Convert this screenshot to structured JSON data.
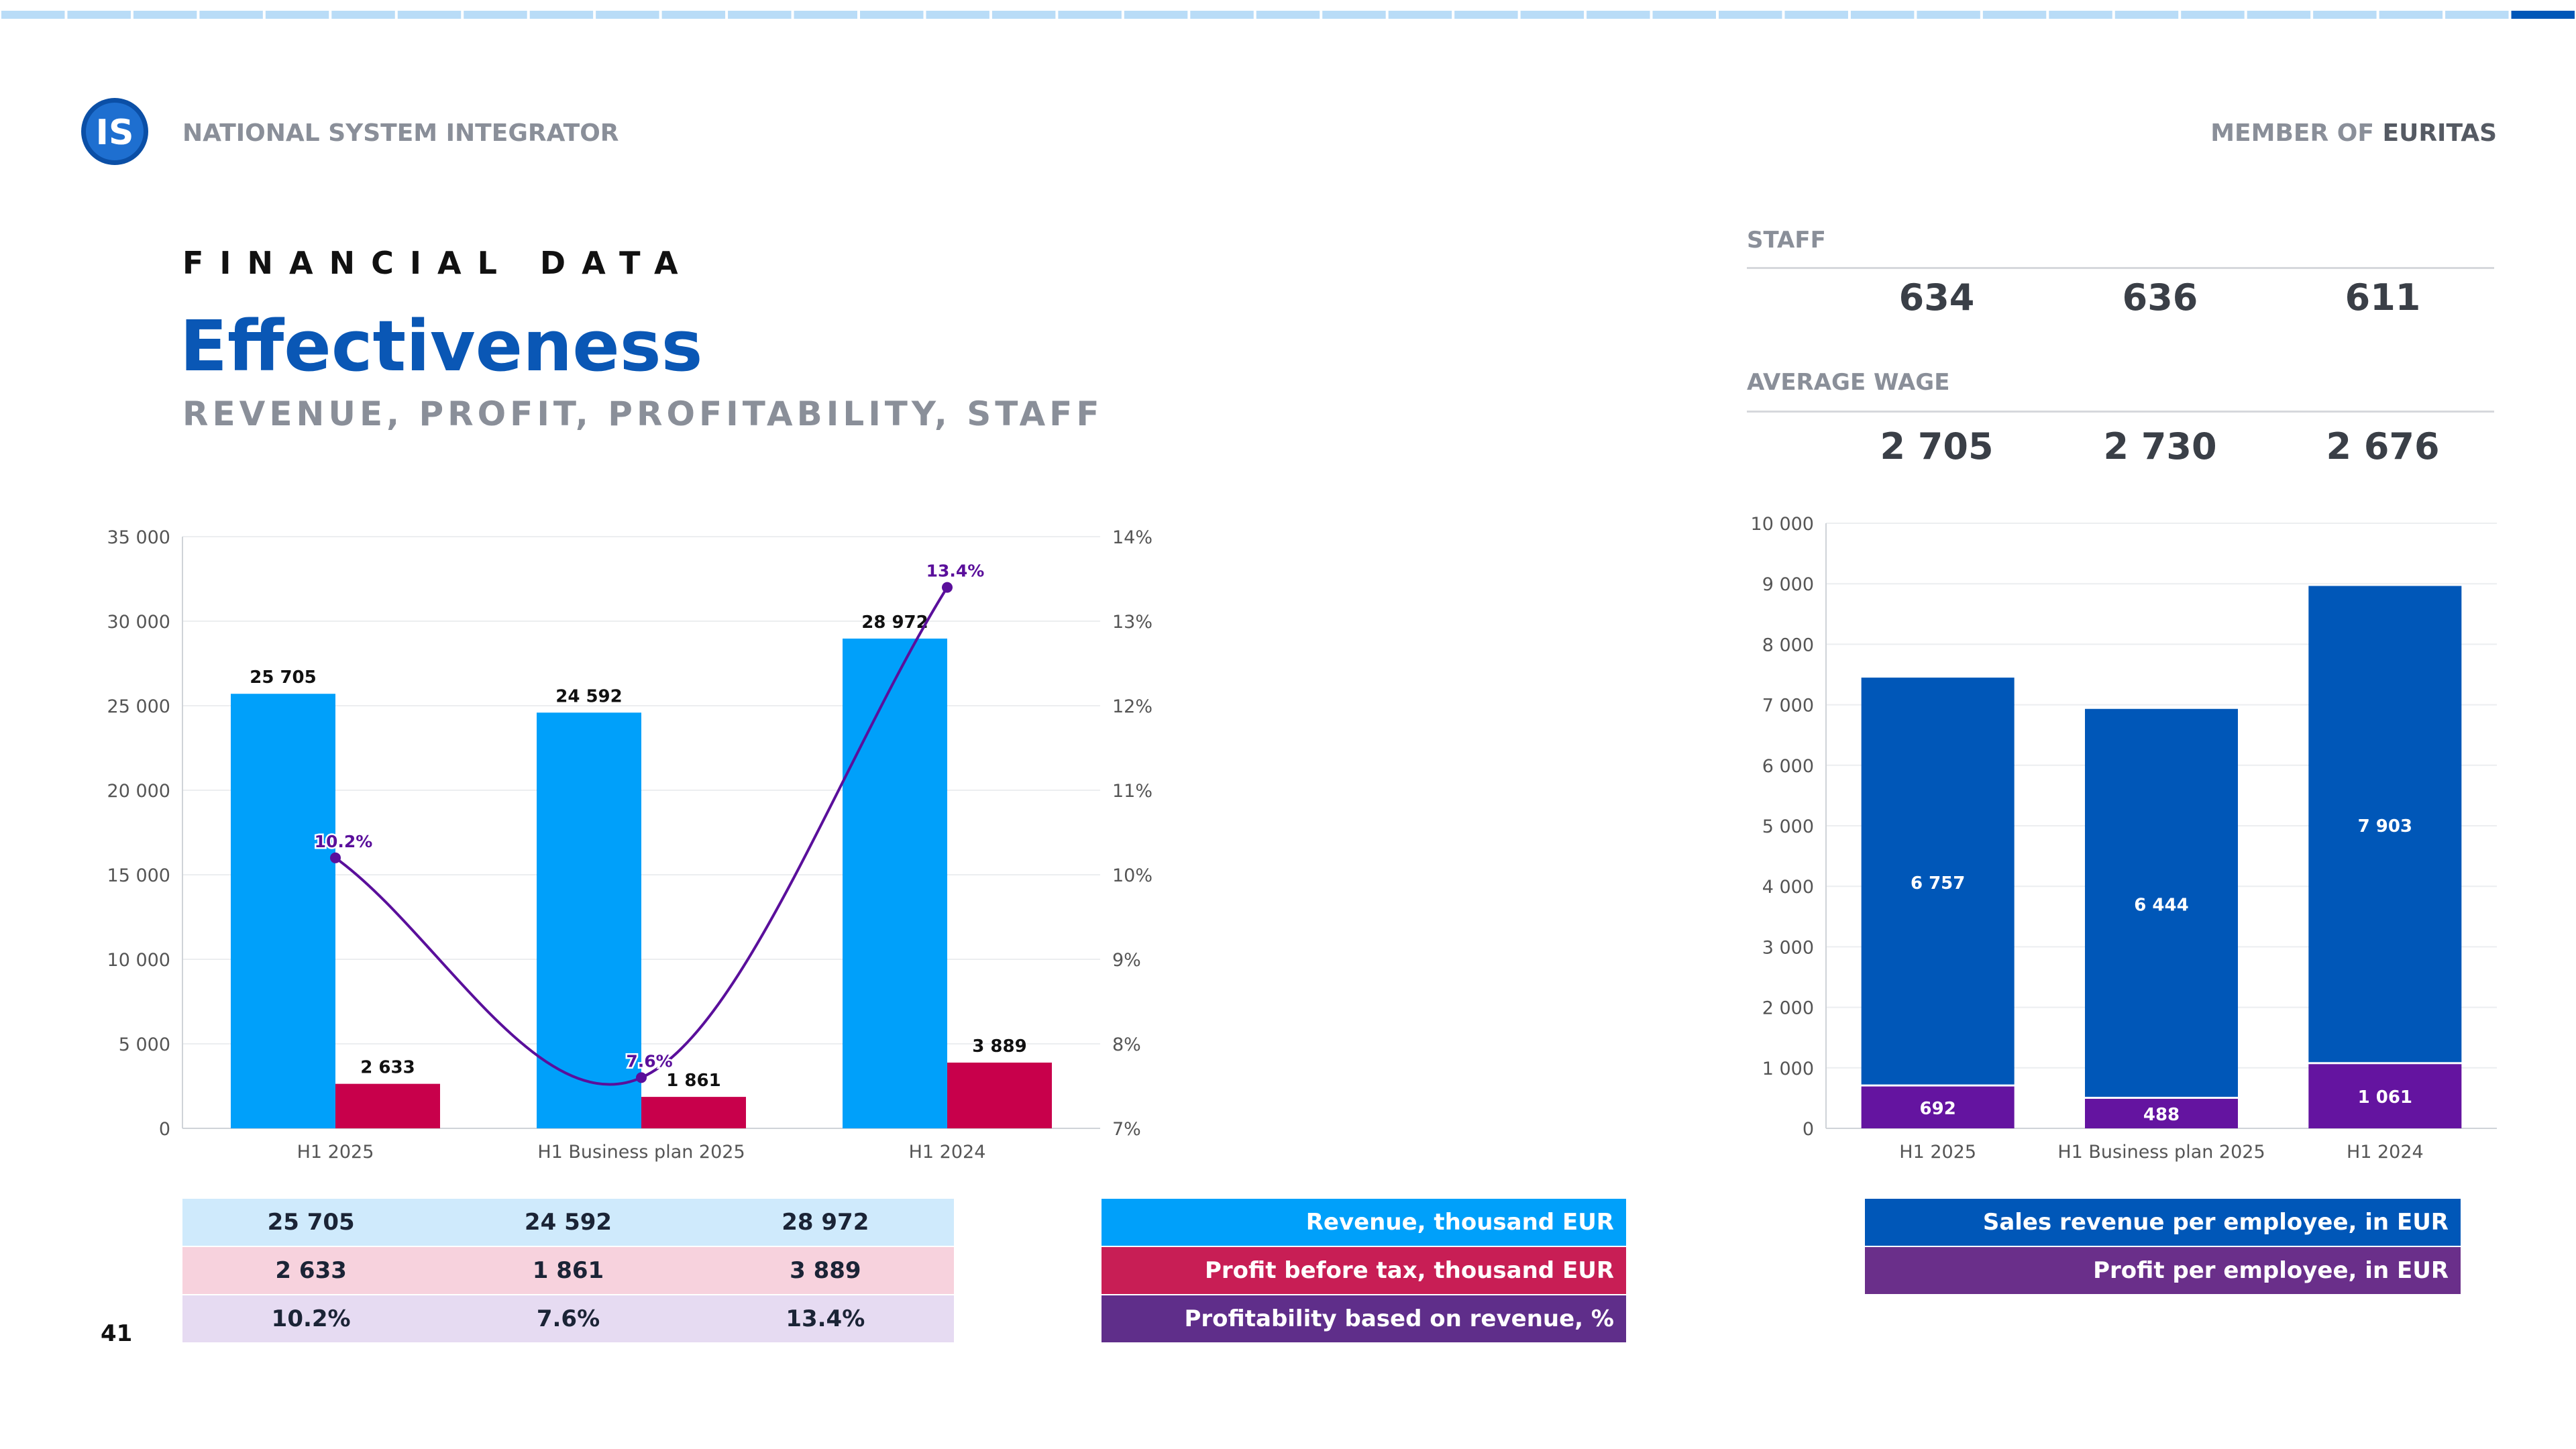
{
  "header": {
    "brand": "NATIONAL SYSTEM INTEGRATOR",
    "member_prefix": "MEMBER OF",
    "member_name": "EURITAS",
    "logo_text": "IS"
  },
  "section_label": "FINANCIAL DATA",
  "title": "Effectiveness",
  "subtitle": "REVENUE, PROFIT, PROFITABILITY, STAFF",
  "page_number": "41",
  "kpis": {
    "staff": {
      "label": "STAFF",
      "values": [
        "634",
        "636",
        "611"
      ]
    },
    "average_wage": {
      "label": "AVERAGE WAGE",
      "values": [
        "2 705",
        "2 730",
        "2 676"
      ]
    }
  },
  "colors": {
    "revenue": "#00a0fa",
    "profit": "#c8004b",
    "profitability": "#5a0f9b",
    "sales_per_employee": "#0057b8",
    "profit_per_employee": "#6414a0",
    "title_blue": "#0a57b5",
    "progress_light": "#b9dcf7",
    "progress_dark": "#0057b8"
  },
  "chart_data": [
    {
      "type": "bar",
      "categories": [
        "H1 2025",
        "H1 Business plan 2025",
        "H1 2024"
      ],
      "series": [
        {
          "name": "Revenue, thousand EUR",
          "values": [
            25705,
            24592,
            28972
          ],
          "labels": [
            "25 705",
            "24 592",
            "28 972"
          ]
        },
        {
          "name": "Profit before tax, thousand EUR",
          "values": [
            2633,
            1861,
            3889
          ],
          "labels": [
            "2 633",
            "1 861",
            "3 889"
          ]
        },
        {
          "name": "Profitability based on revenue, %",
          "type": "line",
          "axis": "right",
          "values": [
            10.2,
            7.6,
            13.4
          ],
          "labels": [
            "10.2%",
            "7.6%",
            "13.4%"
          ]
        }
      ],
      "ylim": [
        0,
        35000
      ],
      "y_ticks": [
        "0",
        "5 000",
        "10 000",
        "15 000",
        "20 000",
        "25 000",
        "30 000",
        "35 000"
      ],
      "y2lim": [
        7,
        14
      ],
      "y2_ticks": [
        "7%",
        "8%",
        "9%",
        "10%",
        "11%",
        "12%",
        "13%",
        "14%"
      ],
      "grid": true,
      "legend": "table-below"
    },
    {
      "type": "bar",
      "stacked": true,
      "categories": [
        "H1 2025",
        "H1 Business plan 2025",
        "H1 2024"
      ],
      "series": [
        {
          "name": "Profit per employee, in EUR",
          "values": [
            692,
            488,
            1061
          ],
          "labels": [
            "692",
            "488",
            "1 061"
          ]
        },
        {
          "name": "Sales revenue per employee, in EUR",
          "values": [
            6757,
            6444,
            7903
          ],
          "labels": [
            "6 757",
            "6 444",
            "7 903"
          ]
        }
      ],
      "ylim": [
        0,
        10000
      ],
      "y_ticks": [
        "0",
        "1 000",
        "2 000",
        "3 000",
        "4 000",
        "5 000",
        "6 000",
        "7 000",
        "8 000",
        "9 000",
        "10 000"
      ],
      "grid": true,
      "legend": "below"
    }
  ],
  "data_table": {
    "rows": [
      {
        "cells": [
          "25 705",
          "24 592",
          "28 972"
        ],
        "legend": "Revenue, thousand EUR"
      },
      {
        "cells": [
          "2 633",
          "1 861",
          "3 889"
        ],
        "legend": "Profit before tax, thousand EUR"
      },
      {
        "cells": [
          "10.2%",
          "7.6%",
          "13.4%"
        ],
        "legend": "Profitability based on revenue, %"
      }
    ]
  },
  "right_legend": [
    "Sales revenue per employee, in EUR",
    "Profit per employee, in EUR"
  ]
}
